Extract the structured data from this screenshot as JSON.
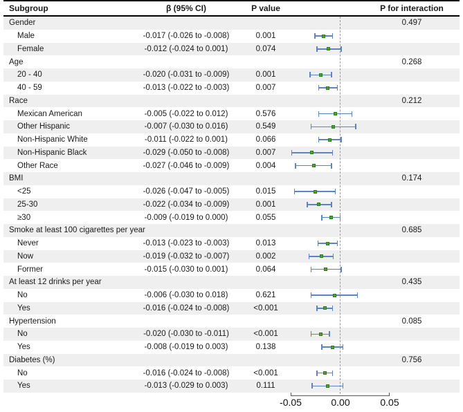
{
  "header": {
    "subgroup": "Subgroup",
    "beta": "β (95% CI)",
    "p_value": "P value",
    "p_interaction": "P for interaction"
  },
  "colors": {
    "stripe": "#efefef",
    "error_bar": "#5b84c4",
    "marker_fill": "#4aa32f",
    "marker_border": "#2e7d1c",
    "zero_line": "#999999",
    "axis": "#555555",
    "border": "#000000"
  },
  "chart_data": {
    "type": "forest",
    "title": "",
    "xlabel": "",
    "xlim": [
      -0.05,
      0.05
    ],
    "zero_reference": 0,
    "grid": false,
    "axis": {
      "ticks": [
        "-0.05",
        "0.00",
        "0.05"
      ],
      "tick_values": [
        -0.05,
        0.0,
        0.05
      ]
    },
    "rows": [
      {
        "kind": "category",
        "label": "Gender",
        "p_interaction": "0.497"
      },
      {
        "kind": "item",
        "label": "Male",
        "beta_ci": "-0.017 (-0.026 to -0.008)",
        "p": "0.001",
        "est": -0.017,
        "lo": -0.026,
        "hi": -0.008
      },
      {
        "kind": "item",
        "label": "Female",
        "beta_ci": "-0.012 (-0.024 to 0.001)",
        "p": "0.074",
        "est": -0.012,
        "lo": -0.024,
        "hi": 0.001
      },
      {
        "kind": "category",
        "label": "Age",
        "p_interaction": "0.268"
      },
      {
        "kind": "item",
        "label": "20 - 40",
        "beta_ci": "-0.020 (-0.031 to -0.009)",
        "p": "0.001",
        "est": -0.02,
        "lo": -0.031,
        "hi": -0.009
      },
      {
        "kind": "item",
        "label": "40 - 59",
        "beta_ci": "-0.013 (-0.022 to -0.003)",
        "p": "0.007",
        "est": -0.013,
        "lo": -0.022,
        "hi": -0.003
      },
      {
        "kind": "category",
        "label": "Race",
        "p_interaction": "0.212"
      },
      {
        "kind": "item",
        "label": "Mexican American",
        "beta_ci": "-0.005 (-0.022 to 0.012)",
        "p": "0.576",
        "est": -0.005,
        "lo": -0.022,
        "hi": 0.012
      },
      {
        "kind": "item",
        "label": "Other Hispanic",
        "beta_ci": "-0.007 (-0.030 to 0.016)",
        "p": "0.549",
        "est": -0.007,
        "lo": -0.03,
        "hi": 0.016
      },
      {
        "kind": "item",
        "label": "Non-Hispanic White",
        "beta_ci": "-0.011 (-0.022 to 0.001)",
        "p": "0.066",
        "est": -0.011,
        "lo": -0.022,
        "hi": 0.001
      },
      {
        "kind": "item",
        "label": "Non-Hispanic Black",
        "beta_ci": "-0.029 (-0.050 to -0.008)",
        "p": "0.007",
        "est": -0.029,
        "lo": -0.05,
        "hi": -0.008
      },
      {
        "kind": "item",
        "label": "Other Race",
        "beta_ci": "-0.027 (-0.046 to -0.009)",
        "p": "0.004",
        "est": -0.027,
        "lo": -0.046,
        "hi": -0.009
      },
      {
        "kind": "category",
        "label": "BMI",
        "p_interaction": "0.174"
      },
      {
        "kind": "item",
        "label": "<25",
        "beta_ci": "-0.026 (-0.047 to -0.005)",
        "p": "0.015",
        "est": -0.026,
        "lo": -0.047,
        "hi": -0.005
      },
      {
        "kind": "item",
        "label": "25-30",
        "beta_ci": "-0.022 (-0.034 to -0.009)",
        "p": "0.001",
        "est": -0.022,
        "lo": -0.034,
        "hi": -0.009
      },
      {
        "kind": "item",
        "label": "≥30",
        "beta_ci": "-0.009 (-0.019 to 0.000)",
        "p": "0.055",
        "est": -0.009,
        "lo": -0.019,
        "hi": 0.0
      },
      {
        "kind": "category",
        "label": "Smoke at least 100 cigarettes per year",
        "p_interaction": "0.685"
      },
      {
        "kind": "item",
        "label": "Never",
        "beta_ci": "-0.013 (-0.023 to -0.003)",
        "p": "0.013",
        "est": -0.013,
        "lo": -0.023,
        "hi": -0.003
      },
      {
        "kind": "item",
        "label": "Now",
        "beta_ci": "-0.019 (-0.032 to -0.007)",
        "p": "0.002",
        "est": -0.019,
        "lo": -0.032,
        "hi": -0.007
      },
      {
        "kind": "item",
        "label": "Former",
        "beta_ci": "-0.015 (-0.030 to 0.001)",
        "p": "0.064",
        "est": -0.015,
        "lo": -0.03,
        "hi": 0.001
      },
      {
        "kind": "category",
        "label": "At least 12 drinks per year",
        "p_interaction": "0.435"
      },
      {
        "kind": "item",
        "label": "No",
        "beta_ci": "-0.006 (-0.030 to 0.018)",
        "p": "0.621",
        "est": -0.006,
        "lo": -0.03,
        "hi": 0.018
      },
      {
        "kind": "item",
        "label": "Yes",
        "beta_ci": "-0.016 (-0.024 to -0.008)",
        "p": "<0.001",
        "est": -0.016,
        "lo": -0.024,
        "hi": -0.008
      },
      {
        "kind": "category",
        "label": "Hypertension",
        "p_interaction": "0.085"
      },
      {
        "kind": "item",
        "label": "No",
        "beta_ci": "-0.020 (-0.030 to -0.011)",
        "p": "<0.001",
        "est": -0.02,
        "lo": -0.03,
        "hi": -0.011
      },
      {
        "kind": "item",
        "label": "Yes",
        "beta_ci": "-0.008 (-0.019 to 0.003)",
        "p": "0.138",
        "est": -0.008,
        "lo": -0.019,
        "hi": 0.003
      },
      {
        "kind": "category",
        "label": "Diabetes (%)",
        "p_interaction": "0.756"
      },
      {
        "kind": "item",
        "label": "No",
        "beta_ci": "-0.016 (-0.024 to -0.008)",
        "p": "<0.001",
        "est": -0.016,
        "lo": -0.024,
        "hi": -0.008
      },
      {
        "kind": "item",
        "label": "Yes",
        "beta_ci": "-0.013 (-0.029 to 0.003)",
        "p": "0.111",
        "est": -0.013,
        "lo": -0.029,
        "hi": 0.003
      }
    ]
  }
}
